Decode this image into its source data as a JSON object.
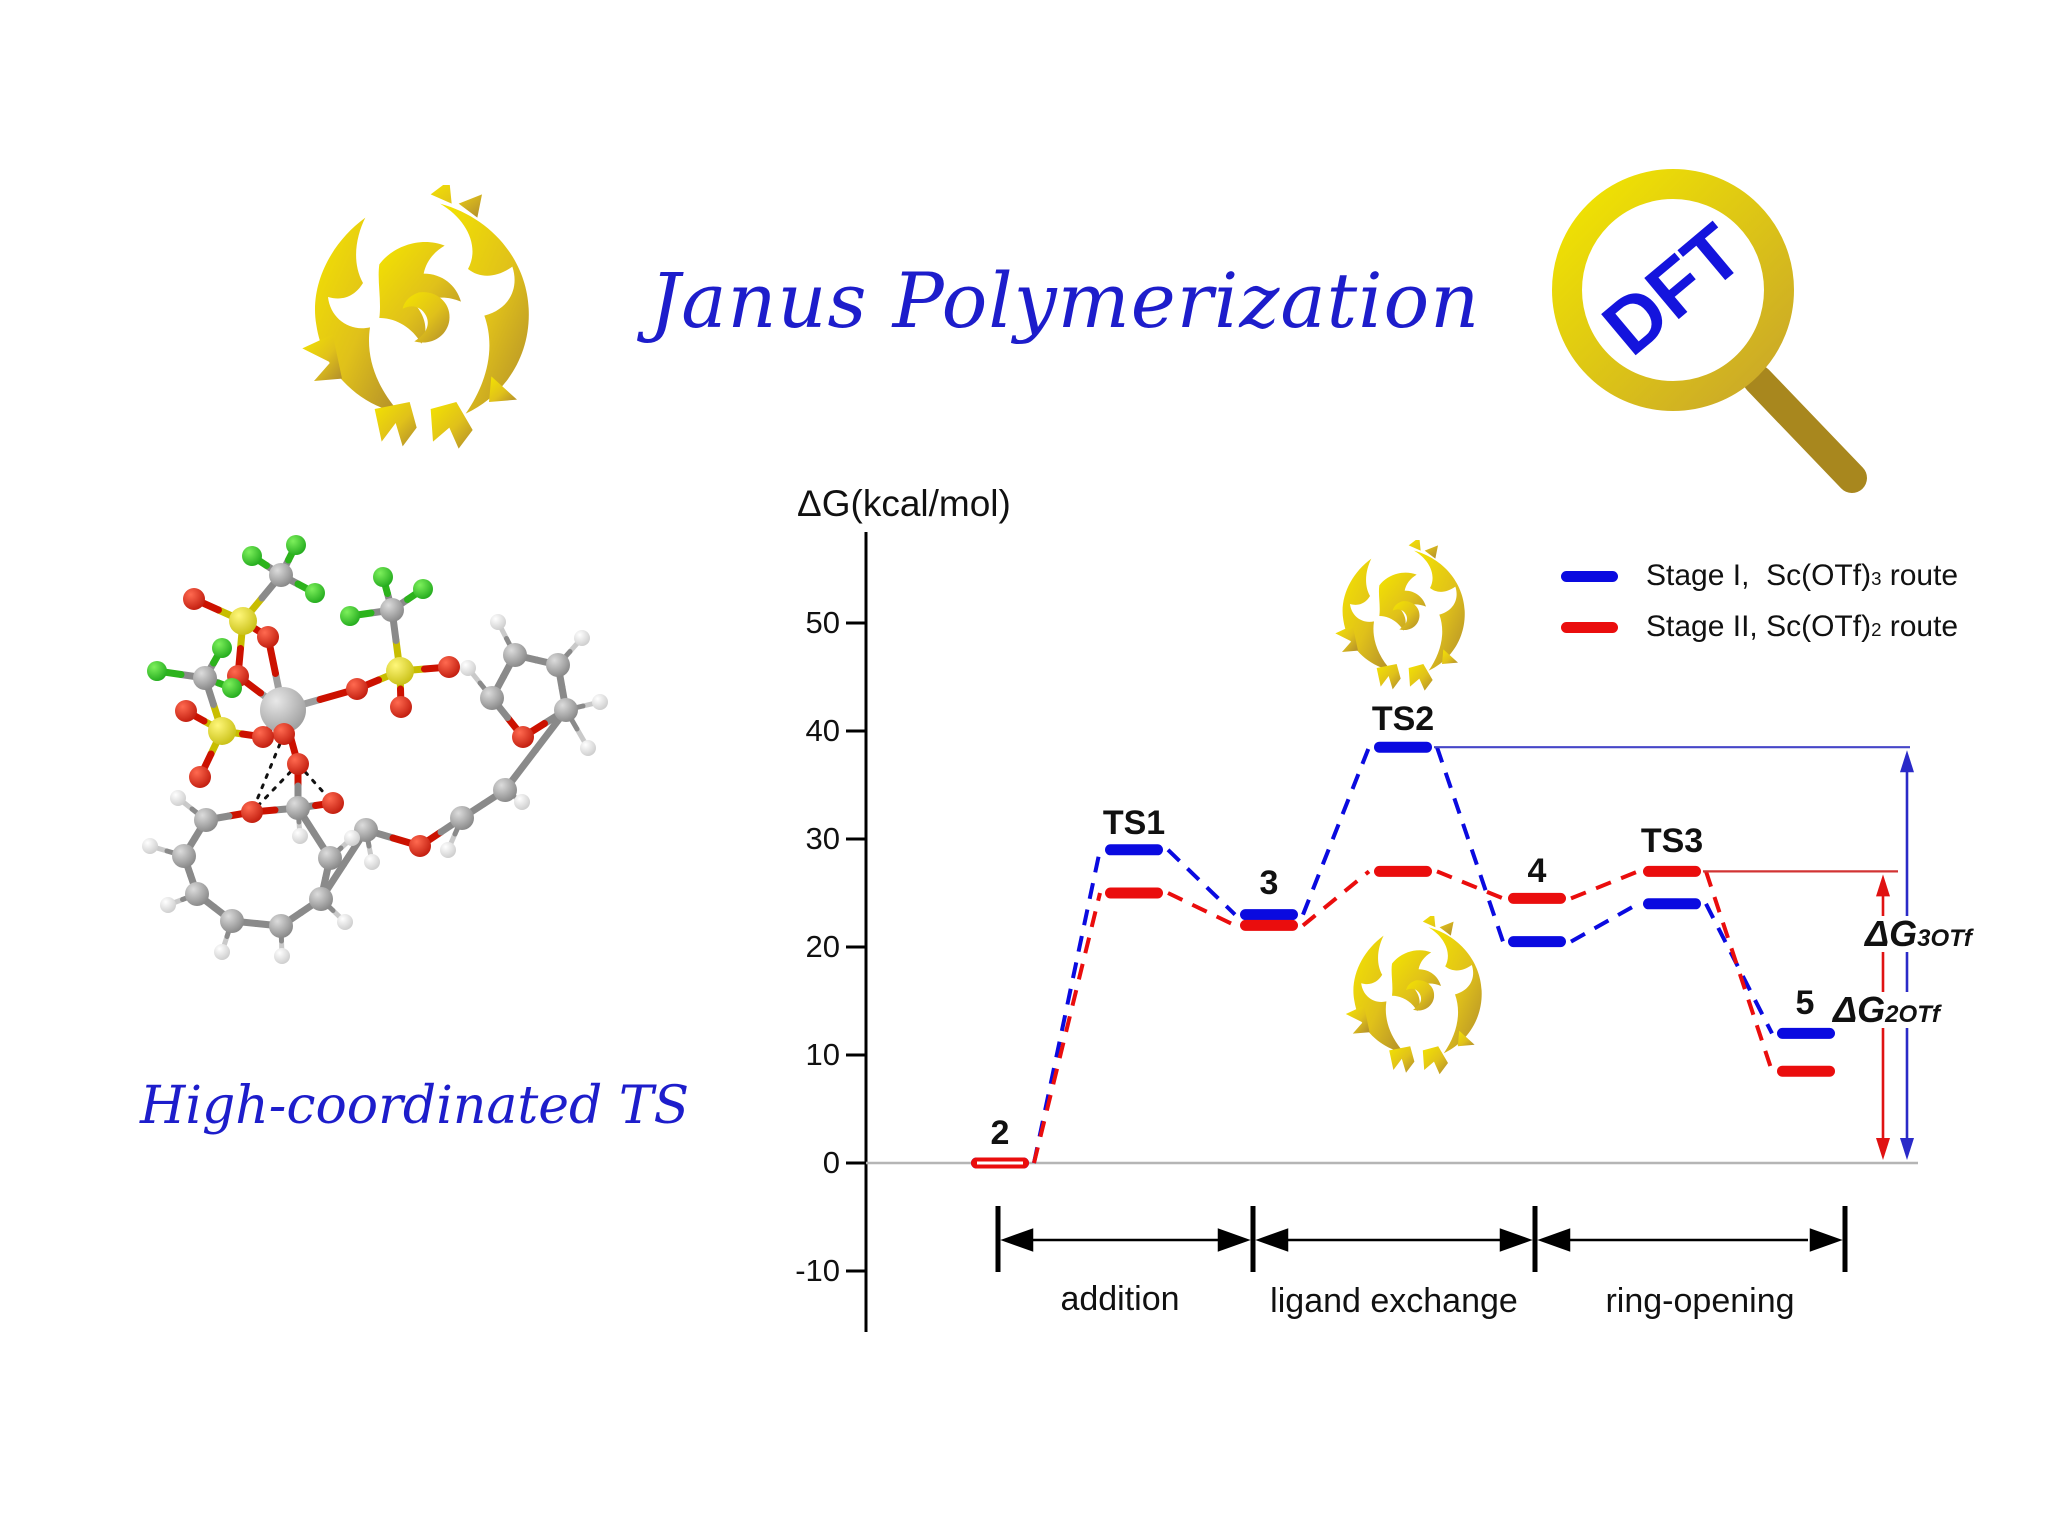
{
  "header": {
    "title": "Janus Polymerization",
    "dft_badge": "DFT",
    "molecule_caption": "High-coordinated TS"
  },
  "chart_data": {
    "type": "line",
    "variant": "reaction-energy-profile",
    "title": "",
    "ylabel": "ΔG(kcal/mol)",
    "yticks": [
      50,
      40,
      30,
      20,
      10,
      0,
      -10
    ],
    "ylim": [
      -14,
      57
    ],
    "grid": "zero-line-only",
    "stations": [
      "2",
      "TS1",
      "3",
      "TS2",
      "4",
      "TS3",
      "5"
    ],
    "series": [
      {
        "name": "Stage I, Sc(OTf)3 route",
        "color": "#0a0ae0",
        "values": [
          0,
          29,
          23,
          38.5,
          20.5,
          24,
          12
        ]
      },
      {
        "name": "Stage II, Sc(OTf)2 route",
        "color": "#ea0d0d",
        "values": [
          0,
          25,
          22,
          27,
          24.5,
          27,
          8.5
        ]
      }
    ],
    "phases": [
      "addition",
      "ligand exchange",
      "ring-opening"
    ],
    "annotations": [
      {
        "label": "ΔG",
        "sub": "3OTf",
        "series": "Stage I",
        "from": 0,
        "to": 38.5,
        "color": "#2a2ac8"
      },
      {
        "label": "ΔG",
        "sub": "2OTf",
        "series": "Stage II",
        "from": 0,
        "to": 27,
        "color": "#e01212"
      }
    ],
    "legend": {
      "position": "top-right",
      "entries": [
        {
          "prefix": "Stage I,  Sc(OTf)",
          "subscript": "3",
          "suffix": " route",
          "color": "#0a0ae0"
        },
        {
          "prefix": "Stage II, Sc(OTf)",
          "subscript": "2",
          "suffix": " route",
          "color": "#ea0d0d"
        }
      ]
    }
  }
}
